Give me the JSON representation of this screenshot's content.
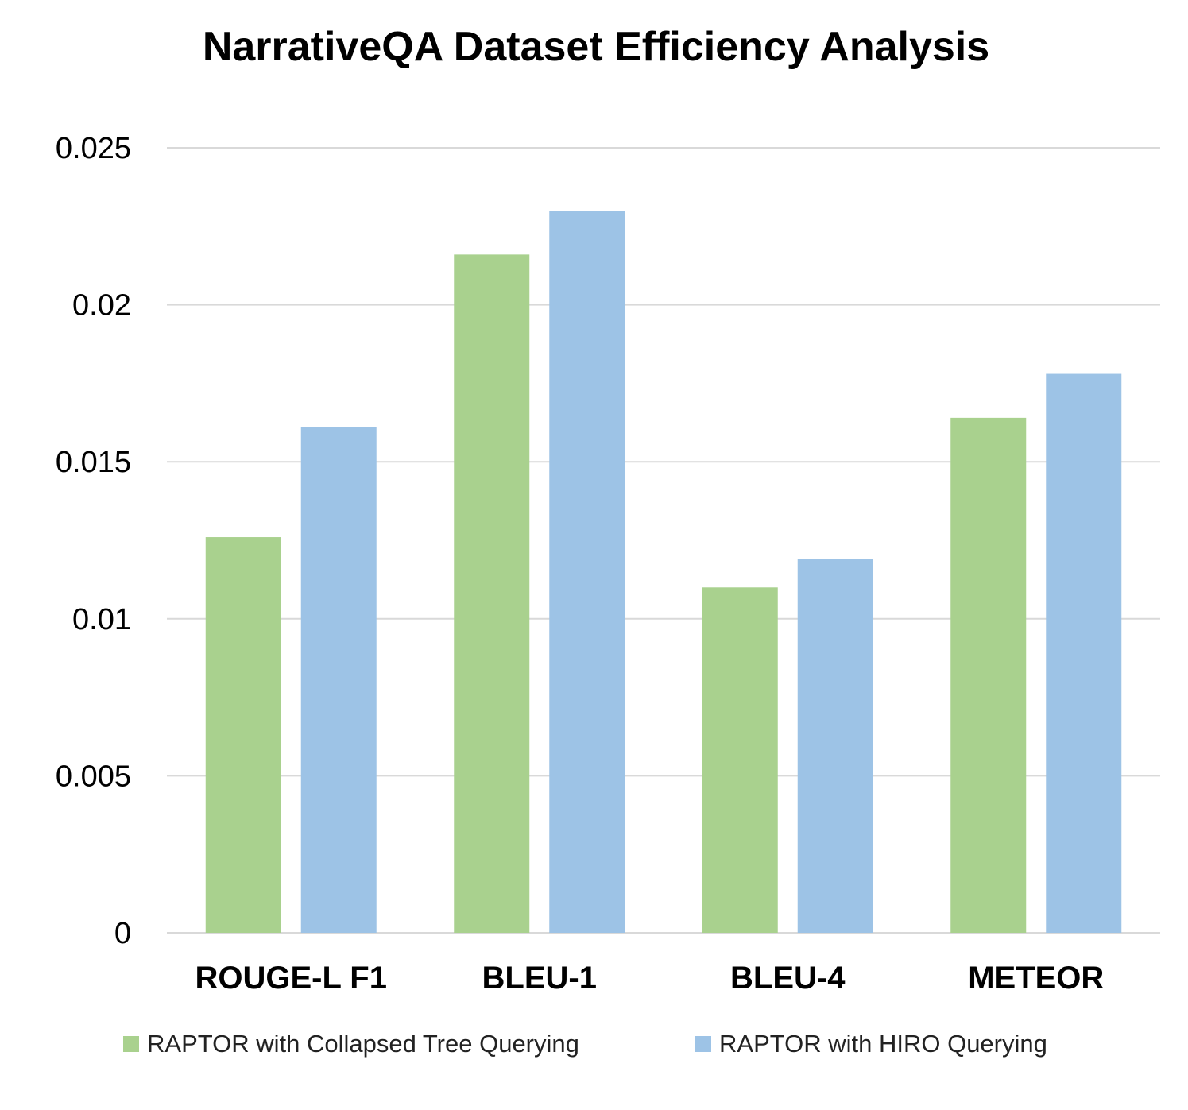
{
  "chart_data": {
    "type": "bar",
    "title": "NarrativeQA Dataset Efficiency Analysis",
    "categories": [
      "ROUGE-L F1",
      "BLEU-1",
      "BLEU-4",
      "METEOR"
    ],
    "series": [
      {
        "name": "RAPTOR with Collapsed Tree Querying",
        "color": "#a9d18e",
        "values": [
          0.0126,
          0.0216,
          0.011,
          0.0164
        ]
      },
      {
        "name": "RAPTOR with HIRO Querying",
        "color": "#9dc3e6",
        "values": [
          0.0161,
          0.023,
          0.0119,
          0.0178
        ]
      }
    ],
    "ylim": [
      0,
      0.025
    ],
    "yticks": [
      "0",
      "0.005",
      "0.01",
      "0.015",
      "0.02",
      "0.025"
    ],
    "grid": true,
    "legend_position": "bottom"
  }
}
